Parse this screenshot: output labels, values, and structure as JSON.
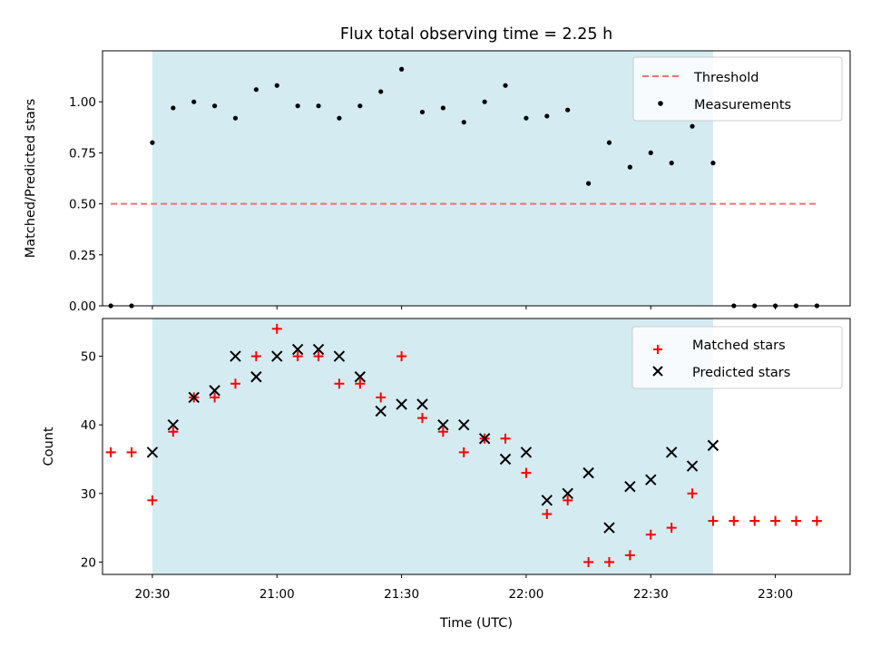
{
  "chart_data": {
    "type": "scatter",
    "title": "Flux total observing time = 2.25 h",
    "xlabel": "Time (UTC)",
    "x_unit": "HH:MM UTC",
    "xlim": [
      "20:18",
      "23:18"
    ],
    "x_ticks": [
      "20:30",
      "21:00",
      "21:30",
      "22:00",
      "22:30",
      "23:00"
    ],
    "shaded_region": {
      "from": "20:30",
      "to": "22:45",
      "color": "#add8e6"
    },
    "panels": [
      {
        "ylabel": "Matched/Predicted stars",
        "ylim": [
          0,
          1.25
        ],
        "y_ticks": [
          "0.00",
          "0.25",
          "0.50",
          "0.75",
          "1.00"
        ],
        "legend_position": "top-right",
        "threshold": {
          "name": "Threshold",
          "value": 0.5,
          "x_from": "20:20",
          "x_to": "23:10",
          "color": "#f07070",
          "style": "dashed"
        },
        "series": [
          {
            "name": "Measurements",
            "marker": "dot",
            "color": "#000000",
            "x": [
              "20:20",
              "20:25",
              "20:30",
              "20:35",
              "20:40",
              "20:45",
              "20:50",
              "20:55",
              "21:00",
              "21:05",
              "21:10",
              "21:15",
              "21:20",
              "21:25",
              "21:30",
              "21:35",
              "21:40",
              "21:45",
              "21:50",
              "21:55",
              "22:00",
              "22:05",
              "22:10",
              "22:15",
              "22:20",
              "22:25",
              "22:30",
              "22:35",
              "22:40",
              "22:45",
              "22:50",
              "22:55",
              "23:00",
              "23:05",
              "23:10"
            ],
            "y": [
              0,
              0,
              0.8,
              0.97,
              1.0,
              0.98,
              0.92,
              1.06,
              1.08,
              0.98,
              0.98,
              0.92,
              0.98,
              1.05,
              1.16,
              0.95,
              0.97,
              0.9,
              1.0,
              1.08,
              0.92,
              0.93,
              0.96,
              0.6,
              0.8,
              0.68,
              0.75,
              0.7,
              0.88,
              0.7,
              0,
              0,
              0,
              0,
              0
            ]
          }
        ]
      },
      {
        "ylabel": "Count",
        "ylim": [
          18.2,
          55.5
        ],
        "y_ticks": [
          "20",
          "30",
          "40",
          "50"
        ],
        "legend_position": "top-right",
        "series": [
          {
            "name": "Matched stars",
            "marker": "plus",
            "color": "#ff0000",
            "x": [
              "20:20",
              "20:25",
              "20:30",
              "20:35",
              "20:40",
              "20:45",
              "20:50",
              "20:55",
              "21:00",
              "21:05",
              "21:10",
              "21:15",
              "21:20",
              "21:25",
              "21:30",
              "21:35",
              "21:40",
              "21:45",
              "21:50",
              "21:55",
              "22:00",
              "22:05",
              "22:10",
              "22:15",
              "22:20",
              "22:25",
              "22:30",
              "22:35",
              "22:40",
              "22:45",
              "22:50",
              "22:55",
              "23:00",
              "23:05",
              "23:10"
            ],
            "y": [
              36,
              36,
              29,
              39,
              44,
              44,
              46,
              50,
              54,
              50,
              50,
              46,
              46,
              44,
              50,
              41,
              39,
              36,
              38,
              38,
              33,
              27,
              29,
              20,
              20,
              21,
              24,
              25,
              30,
              26,
              26,
              26,
              26,
              26,
              26
            ]
          },
          {
            "name": "Predicted stars",
            "marker": "x",
            "color": "#000000",
            "x": [
              "20:30",
              "20:35",
              "20:40",
              "20:45",
              "20:50",
              "20:55",
              "21:00",
              "21:05",
              "21:10",
              "21:15",
              "21:20",
              "21:25",
              "21:30",
              "21:35",
              "21:40",
              "21:45",
              "21:50",
              "21:55",
              "22:00",
              "22:05",
              "22:10",
              "22:15",
              "22:20",
              "22:25",
              "22:30",
              "22:35",
              "22:40",
              "22:45"
            ],
            "y": [
              36,
              40,
              44,
              45,
              50,
              47,
              50,
              51,
              51,
              50,
              47,
              42,
              43,
              43,
              40,
              40,
              38,
              35,
              36,
              29,
              30,
              33,
              25,
              31,
              32,
              36,
              34,
              37
            ]
          }
        ]
      }
    ]
  }
}
